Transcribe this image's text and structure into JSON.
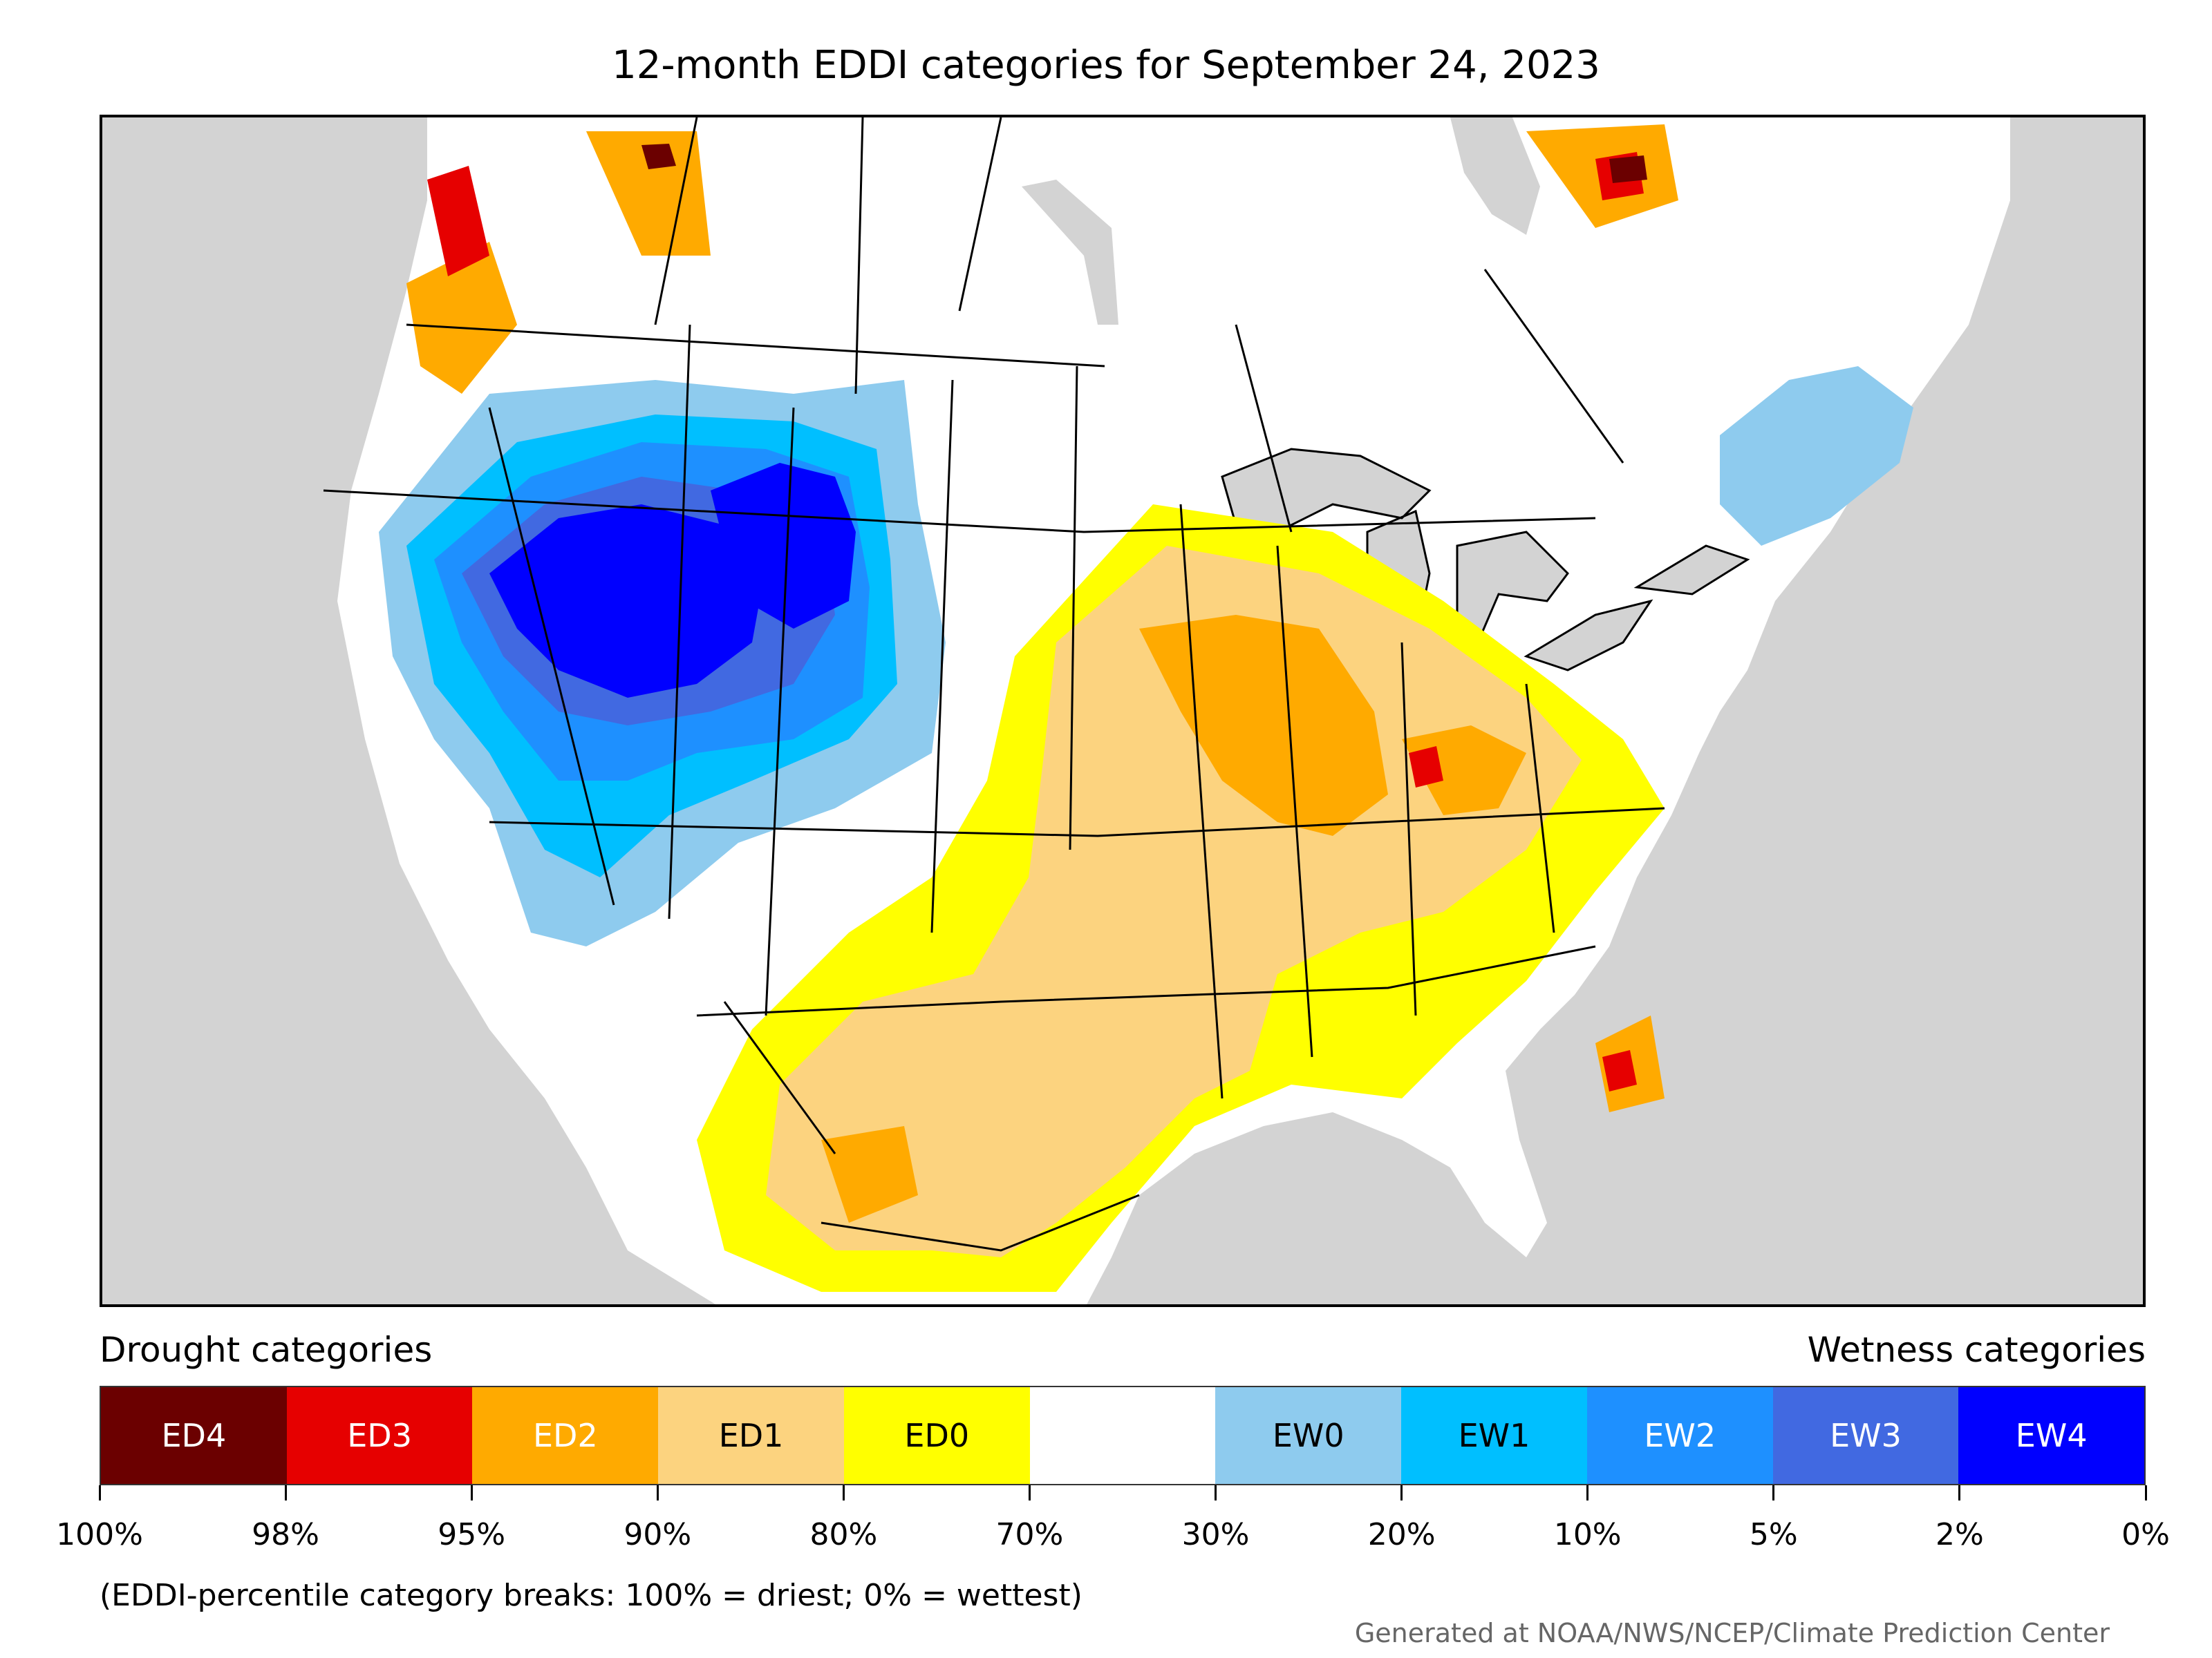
{
  "title": "12-month EDDI categories for September 24, 2023",
  "legend": {
    "drought_label": "Drought categories",
    "wetness_label": "Wetness categories",
    "categories": [
      {
        "label": "ED4",
        "color": "#6b0000",
        "text_color": "#ffffff"
      },
      {
        "label": "ED3",
        "color": "#e60000",
        "text_color": "#ffffff"
      },
      {
        "label": "ED2",
        "color": "#ffaa00",
        "text_color": "#ffffff"
      },
      {
        "label": "ED1",
        "color": "#fcd37f",
        "text_color": "#000000"
      },
      {
        "label": "ED0",
        "color": "#ffff00",
        "text_color": "#000000"
      },
      {
        "label": "",
        "color": "#ffffff",
        "text_color": "#000000"
      },
      {
        "label": "EW0",
        "color": "#8ecbee",
        "text_color": "#000000"
      },
      {
        "label": "EW1",
        "color": "#00bfff",
        "text_color": "#000000"
      },
      {
        "label": "EW2",
        "color": "#1e90ff",
        "text_color": "#ffffff"
      },
      {
        "label": "EW3",
        "color": "#4169e1",
        "text_color": "#ffffff"
      },
      {
        "label": "EW4",
        "color": "#0000ff",
        "text_color": "#ffffff"
      }
    ],
    "tick_labels": [
      "100%",
      "98%",
      "95%",
      "90%",
      "80%",
      "70%",
      "30%",
      "20%",
      "10%",
      "5%",
      "2%",
      "0%"
    ]
  },
  "note": "(EDDI-percentile category breaks: 100% = driest; 0% = wettest)",
  "credit": "Generated at NOAA/NWS/NCEP/Climate Prediction Center"
}
